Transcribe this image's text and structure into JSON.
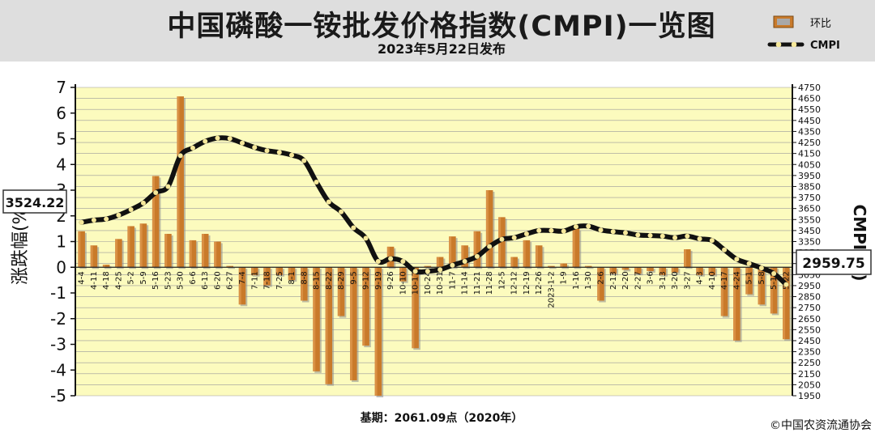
{
  "title": "中国磷酸一铵批发价格指数(CMPI)一览图",
  "subtitle": "2023年5月22日发布",
  "footer": {
    "base": "基期：2061.09点（2020年）",
    "copyright": "©中国农资流通协会"
  },
  "colors": {
    "plot_background": "#fcfbbe",
    "bar": "#c97a2a",
    "line": "#111111",
    "marker": "#f6e89a"
  },
  "chart_data": {
    "type": "bar+line",
    "legend": {
      "position": "top-right",
      "bar_label": "环比",
      "line_label": "CMPI"
    },
    "left_axis": {
      "label": "涨跌幅(%)",
      "ylim": [
        -5,
        7
      ],
      "ticks": [
        -5,
        -4,
        -3,
        -2,
        -1,
        0,
        1,
        2,
        3,
        4,
        5,
        6,
        7
      ]
    },
    "right_axis": {
      "label": "CMPI(点)",
      "ylim": [
        1950,
        4750
      ],
      "step": 100
    },
    "grid": true,
    "categories": [
      "4-4",
      "4-11",
      "4-18",
      "4-25",
      "5-2",
      "5-9",
      "5-16",
      "5-23",
      "5-30",
      "6-6",
      "6-13",
      "6-20",
      "6-27",
      "7-4",
      "7-11",
      "7-18",
      "7-25",
      "8-1",
      "8-8",
      "8-15",
      "8-22",
      "8-29",
      "9-5",
      "9-12",
      "9-19",
      "9-26",
      "10-10",
      "10-17",
      "10-24",
      "10-31",
      "11-7",
      "11-14",
      "11-21",
      "11-28",
      "12-5",
      "12-12",
      "12-19",
      "12-26",
      "2023-1-2",
      "1-9",
      "1-16",
      "1-30",
      "2-6",
      "2-13",
      "2-20",
      "2-27",
      "3-6",
      "3-13",
      "3-20",
      "3-27",
      "4-3",
      "4-10",
      "4-17",
      "4-24",
      "5-1",
      "5-8",
      "5-15",
      "5-22"
    ],
    "label_every": 1,
    "series": [
      {
        "name": "环比",
        "kind": "bar",
        "axis": "left",
        "values": [
          1.4,
          0.85,
          0.1,
          1.1,
          1.6,
          1.7,
          3.55,
          1.3,
          6.65,
          1.05,
          1.3,
          1.0,
          0.05,
          -1.45,
          -0.3,
          -0.7,
          -0.3,
          -0.5,
          -1.3,
          -4.05,
          -4.55,
          -1.9,
          -4.4,
          -3.05,
          -5.0,
          0.8,
          -0.55,
          -3.15,
          0.05,
          0.4,
          1.2,
          0.85,
          1.4,
          3.0,
          1.95,
          0.4,
          1.05,
          0.85,
          0.05,
          0.15,
          1.5,
          0.05,
          -1.3,
          -0.25,
          -0.1,
          -0.25,
          -0.15,
          -0.3,
          -0.2,
          0.7,
          -0.3,
          -0.3,
          -1.9,
          -2.85,
          -1.05,
          -1.45,
          -1.8,
          -2.8
        ]
      },
      {
        "name": "CMPI",
        "kind": "line",
        "axis": "right",
        "values": [
          3524.22,
          3545,
          3555,
          3590,
          3640,
          3700,
          3795,
          3850,
          4130,
          4200,
          4260,
          4290,
          4285,
          4245,
          4205,
          4175,
          4160,
          4135,
          4085,
          3890,
          3710,
          3620,
          3475,
          3380,
          3170,
          3195,
          3170,
          3080,
          3080,
          3095,
          3135,
          3170,
          3215,
          3305,
          3370,
          3385,
          3420,
          3450,
          3450,
          3445,
          3485,
          3490,
          3455,
          3440,
          3430,
          3410,
          3405,
          3400,
          3385,
          3400,
          3375,
          3360,
          3275,
          3190,
          3150,
          3110,
          3060,
          2959.75
        ]
      }
    ],
    "callouts": {
      "start": "3524.22",
      "end": "2959.75"
    }
  }
}
